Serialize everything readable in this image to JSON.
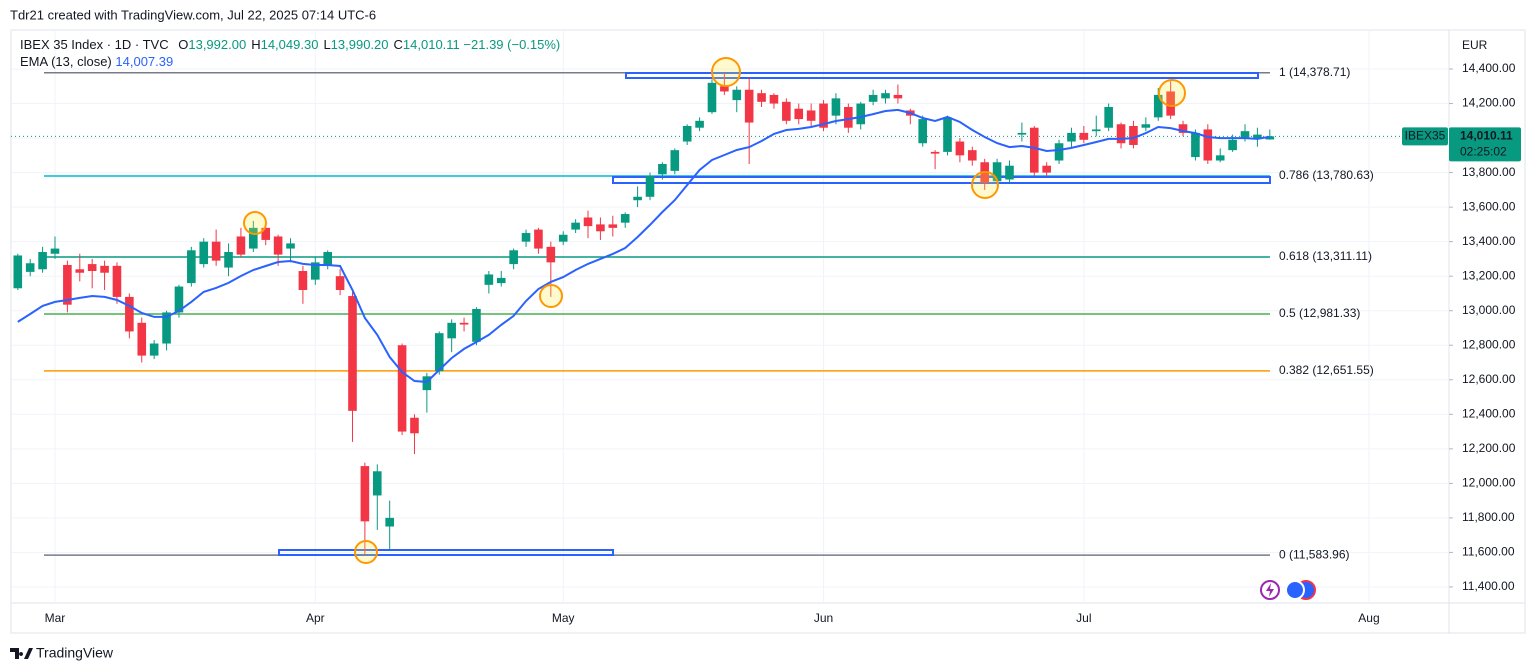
{
  "header": {
    "credit": "Tdr21 created with TradingView.com, Jul 22, 2025 07:14 UTC-6"
  },
  "footer": {
    "brand": "TradingView"
  },
  "chart_data": {
    "type": "candlestick",
    "symbol": "IBEX 35 Index · 1D · TVC",
    "ohlc_legend": [
      {
        "key": "O",
        "value": 13992,
        "label": "13,992.00"
      },
      {
        "key": "H",
        "value": 14049.3,
        "label": "14,049.30"
      },
      {
        "key": "L",
        "value": 13990.2,
        "label": "13,990.20"
      },
      {
        "key": "C",
        "value": 14010.11,
        "label": "14,010.11"
      }
    ],
    "change": "−21.39 (−0.15%)",
    "currency": "EUR",
    "price_tag": {
      "symbol": "IBEX35",
      "price": {
        "value": 14010.11,
        "label": "14,010.11"
      },
      "countdown": "02:25:02"
    },
    "up_color": "#089981",
    "down_color": "#f23645",
    "grid": true,
    "ylim": [
      11307,
      14626
    ],
    "yticks": [
      {
        "value": 11400,
        "label": "11,400.00"
      },
      {
        "value": 11600,
        "label": "11,600.00"
      },
      {
        "value": 11800,
        "label": "11,800.00"
      },
      {
        "value": 12000,
        "label": "12,000.00"
      },
      {
        "value": 12200,
        "label": "12,200.00"
      },
      {
        "value": 12400,
        "label": "12,400.00"
      },
      {
        "value": 12600,
        "label": "12,600.00"
      },
      {
        "value": 12800,
        "label": "12,800.00"
      },
      {
        "value": 13000,
        "label": "13,000.00"
      },
      {
        "value": 13200,
        "label": "13,200.00"
      },
      {
        "value": 13400,
        "label": "13,400.00"
      },
      {
        "value": 13600,
        "label": "13,600.00"
      },
      {
        "value": 13800,
        "label": "13,800.00"
      },
      {
        "value": 14000,
        "label": "14,000.00"
      },
      {
        "value": 14200,
        "label": "14,200.00"
      },
      {
        "value": 14400,
        "label": "14,400.00"
      }
    ],
    "categories": [
      null,
      null,
      null,
      "Mar",
      null,
      null,
      null,
      null,
      null,
      null,
      null,
      null,
      null,
      null,
      null,
      null,
      null,
      null,
      null,
      null,
      null,
      null,
      null,
      null,
      "Apr",
      null,
      null,
      null,
      null,
      null,
      null,
      null,
      null,
      null,
      null,
      null,
      null,
      null,
      null,
      null,
      null,
      null,
      null,
      null,
      "May",
      null,
      null,
      null,
      null,
      null,
      null,
      null,
      null,
      null,
      null,
      null,
      null,
      null,
      null,
      null,
      null,
      null,
      null,
      null,
      null,
      "Jun",
      null,
      null,
      null,
      null,
      null,
      null,
      null,
      null,
      null,
      null,
      null,
      null,
      null,
      null,
      null,
      null,
      null,
      null,
      null,
      null,
      "Jul",
      null,
      null,
      null,
      null,
      null,
      null,
      null,
      null,
      null,
      null,
      null,
      null,
      null,
      null,
      null,
      null,
      null,
      null,
      null,
      null,
      null,
      null,
      "Aug",
      null,
      null,
      null,
      null,
      null,
      null
    ],
    "open": [
      13130,
      13225,
      13240,
      13330,
      13265,
      13240,
      13270,
      13260,
      13260,
      13080,
      12930,
      12740,
      12810,
      12990,
      13160,
      13270,
      13400,
      13250,
      13430,
      13360,
      13480,
      13430,
      13360,
      13230,
      13180,
      13265,
      13200,
      13085,
      12100,
      11930,
      11750,
      12800,
      12380,
      12540,
      12650,
      12840,
      12930,
      12820,
      13150,
      13160,
      13270,
      13400,
      13470,
      13370,
      13400,
      13470,
      13540,
      13500,
      13500,
      13510,
      13640,
      13660,
      13790,
      13810,
      13980,
      14060,
      14150,
      14300,
      14220,
      14280,
      14260,
      14250,
      14210,
      14170,
      14160,
      14200,
      14130,
      14180,
      14080,
      14210,
      14230,
      14250,
      14160,
      13970,
      13920,
      13920,
      13980,
      13930,
      13860,
      13750,
      13760,
      14020,
      14060,
      13840,
      13870,
      13980,
      14030,
      14040,
      14060,
      14080,
      14070,
      14060,
      14120,
      14270,
      14080,
      13890,
      14050,
      13870,
      13930,
      14000,
      14000,
      13992,
      null,
      null,
      null,
      null,
      null,
      null,
      null,
      null,
      null,
      null,
      null,
      null,
      null,
      null
    ],
    "high": [
      13330,
      13300,
      13370,
      13430,
      13290,
      13330,
      13300,
      13290,
      13280,
      13100,
      12960,
      12830,
      13000,
      13150,
      13370,
      13420,
      13470,
      13390,
      13480,
      13520,
      13490,
      13440,
      13420,
      13260,
      13310,
      13350,
      13240,
      13110,
      12120,
      12110,
      11900,
      12810,
      12400,
      12640,
      12880,
      12950,
      12960,
      13020,
      13230,
      13230,
      13360,
      13470,
      13480,
      13400,
      13460,
      13530,
      13580,
      13540,
      13550,
      13570,
      13720,
      13800,
      13860,
      13940,
      14080,
      14120,
      14340,
      14378.71,
      14300,
      14350,
      14280,
      14260,
      14230,
      14200,
      14200,
      14220,
      14260,
      14200,
      14210,
      14280,
      14280,
      14310,
      14170,
      14130,
      13930,
      14130,
      14000,
      13950,
      13880,
      13880,
      13870,
      14090,
      14070,
      13860,
      13990,
      14060,
      14070,
      14130,
      14200,
      14090,
      14100,
      14120,
      14290,
      14330,
      14100,
      14050,
      14080,
      13940,
      14020,
      14080,
      14060,
      14049.3,
      null,
      null,
      null,
      null,
      null,
      null,
      null,
      null,
      null,
      null,
      null,
      null,
      null,
      null
    ],
    "low": [
      13120,
      13200,
      13220,
      13300,
      12990,
      13170,
      13130,
      13120,
      13040,
      12840,
      12700,
      12720,
      12770,
      12960,
      13140,
      13250,
      13260,
      13200,
      13310,
      13340,
      13380,
      13260,
      13280,
      13040,
      13150,
      13240,
      13090,
      12240,
      11583.96,
      11730,
      11620,
      12280,
      12170,
      12410,
      12630,
      12760,
      12880,
      12800,
      13100,
      13140,
      13240,
      13370,
      13330,
      13080,
      13380,
      13450,
      13420,
      13410,
      13430,
      13480,
      13600,
      13640,
      13760,
      13790,
      13960,
      14040,
      14140,
      14250,
      14150,
      13850,
      14180,
      14170,
      14080,
      14080,
      14070,
      14040,
      14080,
      14030,
      14050,
      14190,
      14200,
      14200,
      14080,
      13950,
      13820,
      13900,
      13860,
      13840,
      13700,
      13730,
      13740,
      13980,
      13780,
      13780,
      13850,
      13940,
      13970,
      14010,
      14040,
      13940,
      13940,
      14040,
      14100,
      14110,
      14010,
      13870,
      13850,
      13860,
      13920,
      13980,
      13950,
      13990.2,
      null,
      null,
      null,
      null,
      null,
      null,
      null,
      null,
      null,
      null,
      null,
      null,
      null,
      null
    ],
    "close": [
      13320,
      13275,
      13340,
      13360,
      13035,
      13220,
      13230,
      13220,
      13080,
      12880,
      12740,
      12810,
      12990,
      13140,
      13350,
      13400,
      13290,
      13340,
      13325,
      13480,
      13410,
      13325,
      13390,
      13120,
      13280,
      13340,
      13120,
      12420,
      11780,
      12070,
      11800,
      12300,
      12290,
      12620,
      12870,
      12930,
      12920,
      13010,
      13210,
      13190,
      13350,
      13450,
      13360,
      13280,
      13440,
      13510,
      13490,
      13460,
      13480,
      13560,
      13660,
      13780,
      13850,
      13930,
      14070,
      14100,
      14320,
      14270,
      14280,
      14090,
      14210,
      14200,
      14100,
      14110,
      14100,
      14060,
      14230,
      14060,
      14200,
      14250,
      14260,
      14230,
      14130,
      14110,
      13910,
      14120,
      13900,
      13870,
      13740,
      13860,
      13840,
      14030,
      13800,
      13800,
      13970,
      14030,
      13990,
      14050,
      14180,
      13970,
      13960,
      14080,
      14250,
      14130,
      14030,
      14030,
      13870,
      13900,
      13990,
      14040,
      14020,
      14010.11,
      null,
      null,
      null,
      null,
      null,
      null,
      null,
      null,
      null,
      null,
      null,
      null,
      null,
      null
    ],
    "ema": {
      "name": "EMA (13, close)",
      "color": "#2962ff",
      "value_label": "14,007.39",
      "values": [
        12935,
        12981,
        13028,
        13051,
        13062,
        13074,
        13085,
        13080,
        13062,
        13028,
        12987,
        12964,
        12964,
        12999,
        13051,
        13109,
        13132,
        13161,
        13201,
        13236,
        13259,
        13282,
        13288,
        13271,
        13265,
        13265,
        13259,
        13120,
        12958,
        12860,
        12732,
        12645,
        12593,
        12587,
        12657,
        12726,
        12779,
        12819,
        12860,
        12918,
        12970,
        13056,
        13126,
        13167,
        13195,
        13236,
        13271,
        13300,
        13329,
        13363,
        13427,
        13497,
        13572,
        13641,
        13728,
        13815,
        13873,
        13902,
        13931,
        13948,
        13983,
        14024,
        14047,
        14053,
        14064,
        14081,
        14099,
        14110,
        14122,
        14139,
        14157,
        14163,
        14145,
        14116,
        14099,
        14122,
        14093,
        14047,
        14006,
        13971,
        13948,
        13954,
        13943,
        13925,
        13931,
        13943,
        13960,
        13977,
        13995,
        13995,
        14000,
        14029,
        14064,
        14058,
        14041,
        14029,
        14006,
        14000,
        14000,
        14000,
        13995,
        14007.39,
        null,
        null,
        null,
        null,
        null,
        null,
        null,
        null,
        null,
        null,
        null,
        null,
        null,
        null
      ]
    },
    "fib_levels": [
      {
        "label": "1 (14,378.71)",
        "value": 14378.71,
        "color": "#787b86"
      },
      {
        "label": "0.786 (13,780.63)",
        "value": 13780.63,
        "color": "#00bcd4"
      },
      {
        "label": "0.618 (13,311.11)",
        "value": 13311.11,
        "color": "#089981"
      },
      {
        "label": "0.5 (12,981.33)",
        "value": 12981.33,
        "color": "#4caf50"
      },
      {
        "label": "0.382 (12,651.55)",
        "value": 12651.55,
        "color": "#ff9800"
      },
      {
        "label": "0 (11,583.96)",
        "value": 11583.96,
        "color": "#787b86"
      }
    ]
  }
}
